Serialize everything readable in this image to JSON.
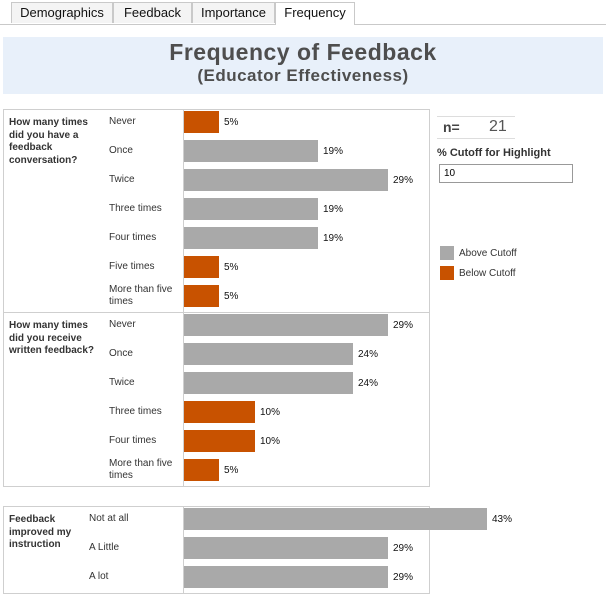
{
  "tabs": [
    {
      "label": "Demographics",
      "active": false
    },
    {
      "label": "Feedback",
      "active": false
    },
    {
      "label": "Importance",
      "active": false
    },
    {
      "label": "Frequency",
      "active": true
    }
  ],
  "header": {
    "title": "Frequency of Feedback",
    "subtitle": "(Educator Effectiveness)"
  },
  "colors": {
    "above": "#a9a9a9",
    "below": "#c85200"
  },
  "sections": [
    {
      "question": "How many times did you have a feedback conversation?",
      "rows": [
        {
          "label": "Never",
          "value": 5,
          "highlight": "below"
        },
        {
          "label": "Once",
          "value": 19,
          "highlight": "above"
        },
        {
          "label": "Twice",
          "value": 29,
          "highlight": "above"
        },
        {
          "label": "Three times",
          "value": 19,
          "highlight": "above"
        },
        {
          "label": "Four times",
          "value": 19,
          "highlight": "above"
        },
        {
          "label": "Five times",
          "value": 5,
          "highlight": "below"
        },
        {
          "label": "More than five times",
          "value": 5,
          "highlight": "below"
        }
      ]
    },
    {
      "question": "How many times did you receive written feedback?",
      "rows": [
        {
          "label": "Never",
          "value": 29,
          "highlight": "above"
        },
        {
          "label": "Once",
          "value": 24,
          "highlight": "above"
        },
        {
          "label": "Twice",
          "value": 24,
          "highlight": "above"
        },
        {
          "label": "Three times",
          "value": 10,
          "highlight": "below"
        },
        {
          "label": "Four times",
          "value": 10,
          "highlight": "below"
        },
        {
          "label": "More than five times",
          "value": 5,
          "highlight": "below"
        }
      ]
    },
    {
      "question": "Feedback improved my instruction",
      "rows": [
        {
          "label": "Not at all",
          "value": 43,
          "highlight": "above"
        },
        {
          "label": "A Little",
          "value": 29,
          "highlight": "above"
        },
        {
          "label": "A lot",
          "value": 29,
          "highlight": "above"
        }
      ]
    }
  ],
  "sidebar": {
    "n_label": "n=",
    "n_value": "21",
    "cutoff_label": "% Cutoff for Highlight",
    "cutoff_value": "10",
    "legend": [
      {
        "label": "Above Cutoff",
        "key": "above"
      },
      {
        "label": "Below Cutoff",
        "key": "below"
      }
    ]
  }
}
